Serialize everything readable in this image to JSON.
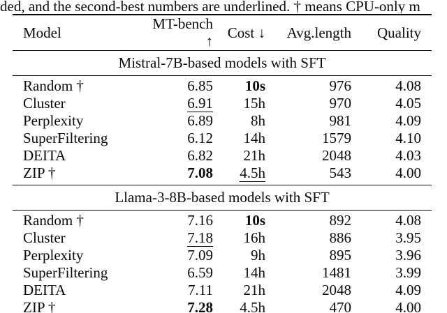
{
  "caption_fragment": "ded, and the second-best numbers are underlined. † means CPU-only m",
  "colors": {
    "text": "#0a0a0a",
    "background": "#ffffff",
    "rule": "#0a0a0a"
  },
  "table": {
    "columns": [
      "Model",
      "MT-bench ↑",
      "Cost ↓",
      "Avg.length",
      "Quality"
    ],
    "sections": [
      {
        "title": "Mistral-7B-based models with SFT",
        "rows": [
          {
            "cells": [
              {
                "text": "Random †"
              },
              {
                "text": "6.85"
              },
              {
                "text": "10s",
                "bold": true
              },
              {
                "text": "976"
              },
              {
                "text": "4.08"
              }
            ]
          },
          {
            "cells": [
              {
                "text": "Cluster"
              },
              {
                "text": "6.91",
                "underline": true
              },
              {
                "text": "15h"
              },
              {
                "text": "970"
              },
              {
                "text": "4.05"
              }
            ]
          },
          {
            "cells": [
              {
                "text": "Perplexity"
              },
              {
                "text": "6.89"
              },
              {
                "text": "8h"
              },
              {
                "text": "981"
              },
              {
                "text": "4.09"
              }
            ]
          },
          {
            "cells": [
              {
                "text": "SuperFiltering"
              },
              {
                "text": "6.12"
              },
              {
                "text": "14h"
              },
              {
                "text": "1579"
              },
              {
                "text": "4.10"
              }
            ]
          },
          {
            "cells": [
              {
                "text": "DEITA"
              },
              {
                "text": "6.82"
              },
              {
                "text": "21h"
              },
              {
                "text": "2048"
              },
              {
                "text": "4.03"
              }
            ]
          },
          {
            "cells": [
              {
                "text": "ZIP †"
              },
              {
                "text": "7.08",
                "bold": true
              },
              {
                "text": "4.5h",
                "underline": true
              },
              {
                "text": "543"
              },
              {
                "text": "4.00"
              }
            ]
          }
        ]
      },
      {
        "title": "Llama-3-8B-based models with SFT",
        "rows": [
          {
            "cells": [
              {
                "text": "Random †"
              },
              {
                "text": "7.16"
              },
              {
                "text": "10s",
                "bold": true
              },
              {
                "text": "892"
              },
              {
                "text": "4.08"
              }
            ]
          },
          {
            "cells": [
              {
                "text": "Cluster"
              },
              {
                "text": "7.18",
                "underline": true
              },
              {
                "text": "16h"
              },
              {
                "text": "886"
              },
              {
                "text": "3.95"
              }
            ]
          },
          {
            "cells": [
              {
                "text": "Perplexity"
              },
              {
                "text": "7.09"
              },
              {
                "text": "9h"
              },
              {
                "text": "895"
              },
              {
                "text": "3.96"
              }
            ]
          },
          {
            "cells": [
              {
                "text": "SuperFiltering"
              },
              {
                "text": "6.59"
              },
              {
                "text": "14h"
              },
              {
                "text": "1481"
              },
              {
                "text": "3.99"
              }
            ]
          },
          {
            "cells": [
              {
                "text": "DEITA"
              },
              {
                "text": "7.11"
              },
              {
                "text": "21h"
              },
              {
                "text": "2048"
              },
              {
                "text": "4.09"
              }
            ]
          },
          {
            "cells": [
              {
                "text": "ZIP †"
              },
              {
                "text": "7.28",
                "bold": true
              },
              {
                "text": "4.5h",
                "underline": true
              },
              {
                "text": "470"
              },
              {
                "text": "4.00"
              }
            ]
          }
        ]
      }
    ]
  }
}
